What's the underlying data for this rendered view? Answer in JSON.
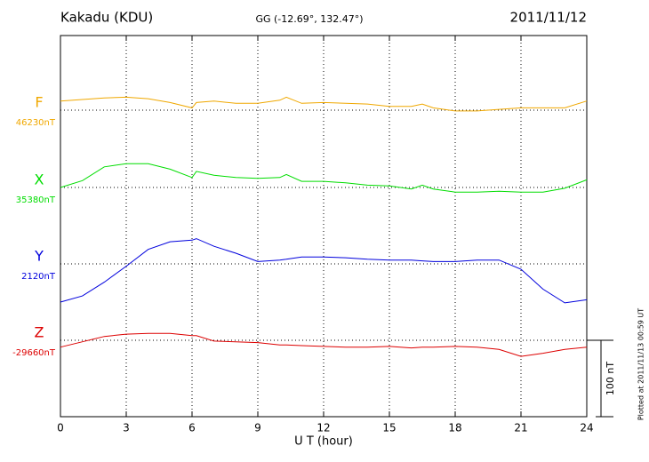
{
  "chart_data": {
    "type": "line",
    "title": "Kakadu (KDU)",
    "subtitle": "GG (-12.69°, 132.47°)",
    "date": "2011/11/12",
    "x_label": "U T (hour)",
    "footnote": "Plotted at 2011/11/13 00:59 UT",
    "scale_bar": {
      "value": 100,
      "label": "100 nT"
    },
    "xlim": [
      0,
      24
    ],
    "xticks": [
      0,
      3,
      6,
      9,
      12,
      15,
      18,
      21,
      24
    ],
    "grid": true,
    "x": [
      0,
      1,
      2,
      3,
      4,
      5,
      6,
      6.2,
      7,
      8,
      9,
      10,
      10.3,
      11,
      12,
      13,
      14,
      15,
      16,
      16.5,
      17,
      18,
      19,
      20,
      21,
      22,
      23,
      24
    ],
    "series": [
      {
        "name": "F",
        "color": "#f0a800",
        "baseline": {
          "value": 46230,
          "label": "46230nT"
        },
        "values": [
          46242,
          46244,
          46246,
          46247,
          46245,
          46240,
          46233,
          46240,
          46242,
          46239,
          46239,
          46243,
          46247,
          46239,
          46240,
          46239,
          46238,
          46235,
          46235,
          46238,
          46233,
          46229,
          46229,
          46231,
          46233,
          46233,
          46233,
          46242
        ]
      },
      {
        "name": "X",
        "color": "#00dd00",
        "baseline": {
          "value": 35380,
          "label": "35380nT"
        },
        "values": [
          35380,
          35389,
          35407,
          35411,
          35411,
          35404,
          35393,
          35401,
          35396,
          35393,
          35392,
          35393,
          35397,
          35388,
          35388,
          35386,
          35383,
          35382,
          35378,
          35383,
          35378,
          35374,
          35374,
          35375,
          35374,
          35374,
          35379,
          35390
        ]
      },
      {
        "name": "Y",
        "color": "#0000dd",
        "baseline": {
          "value": 2120,
          "label": "2120nT"
        },
        "values": [
          2070,
          2078,
          2096,
          2117,
          2139,
          2149,
          2151,
          2153,
          2143,
          2134,
          2123,
          2125,
          2126,
          2129,
          2129,
          2128,
          2126,
          2125,
          2125,
          2124,
          2123,
          2123,
          2125,
          2125,
          2113,
          2087,
          2069,
          2073
        ]
      },
      {
        "name": "Z",
        "color": "#dd0000",
        "baseline": {
          "value": -29660,
          "label": "-29660nT"
        },
        "values": [
          -29669,
          -29662,
          -29655,
          -29652,
          -29651,
          -29651,
          -29654,
          -29654,
          -29661,
          -29662,
          -29663,
          -29666,
          -29666,
          -29667,
          -29668,
          -29669,
          -29669,
          -29668,
          -29670,
          -29669,
          -29669,
          -29668,
          -29669,
          -29672,
          -29681,
          -29677,
          -29672,
          -29669
        ]
      }
    ]
  }
}
